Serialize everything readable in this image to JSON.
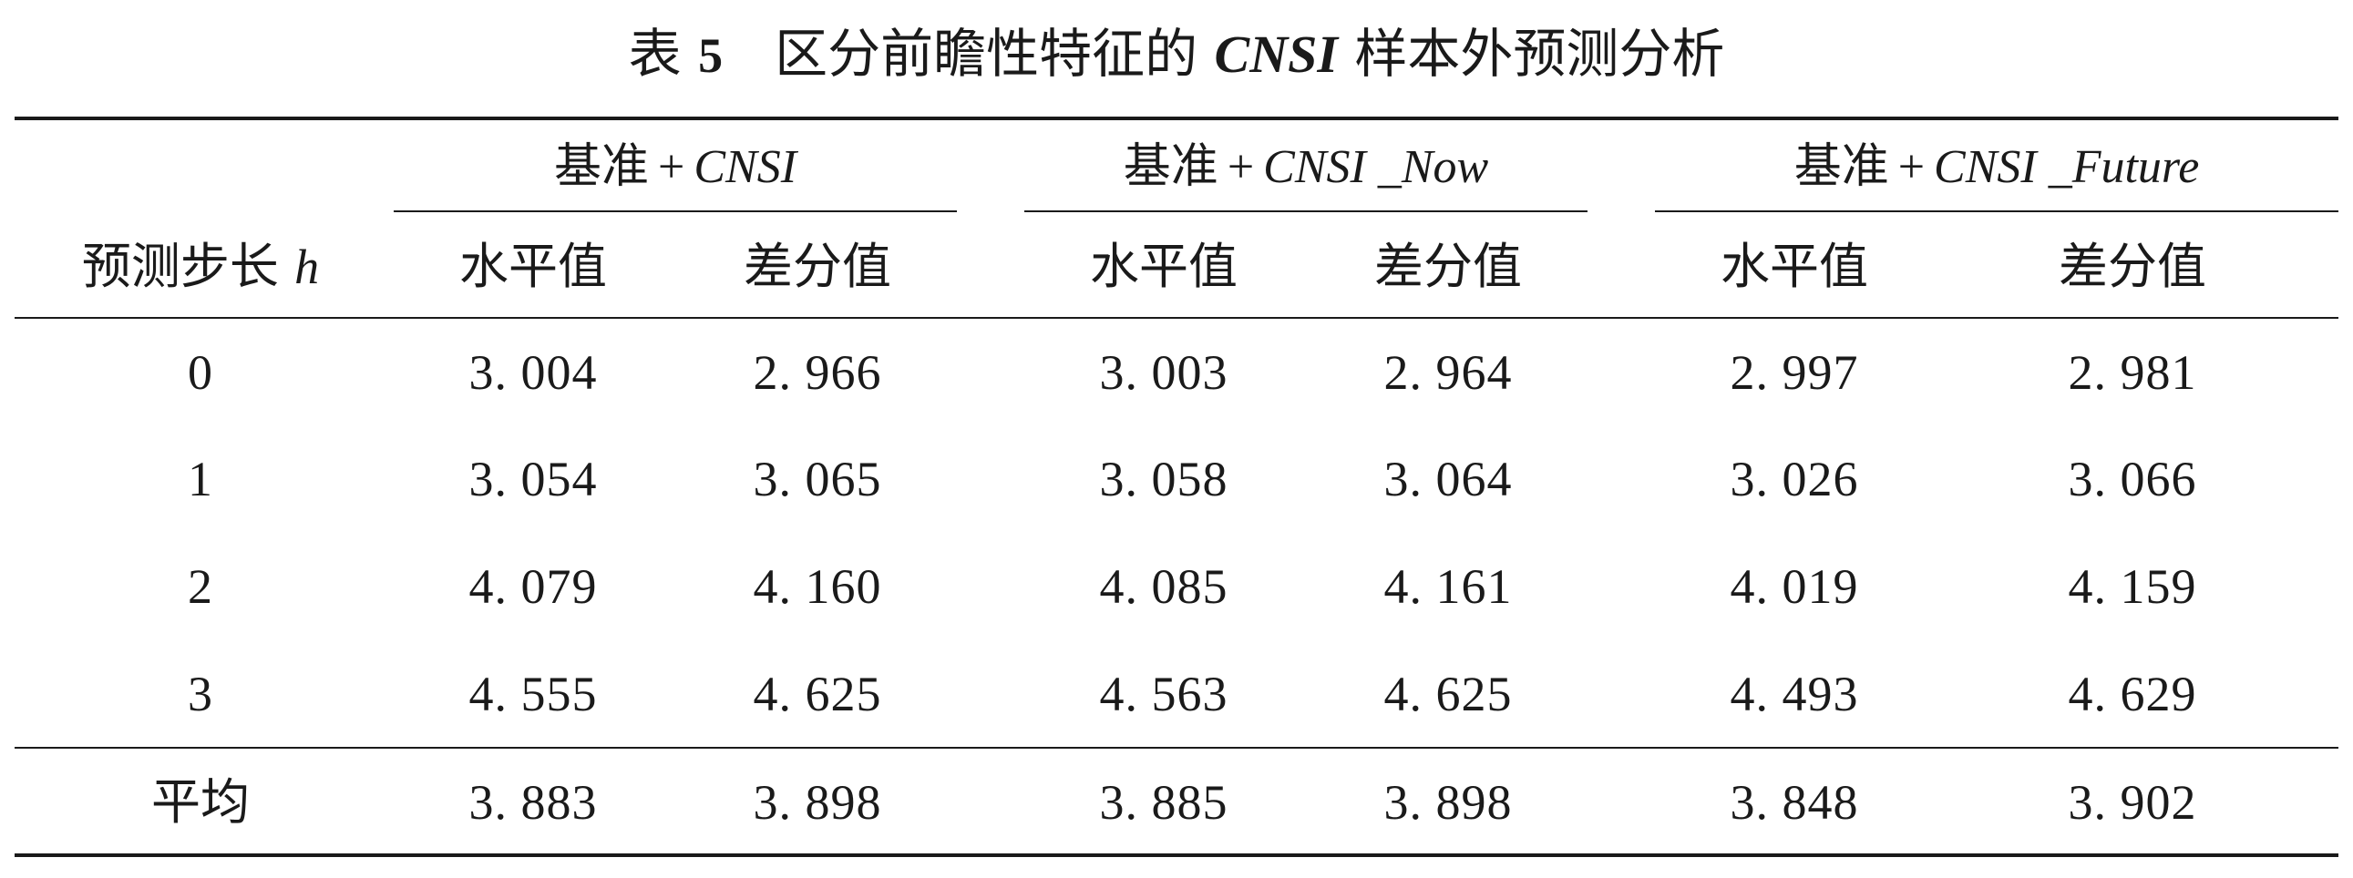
{
  "caption": {
    "prefix": "表",
    "number": "5",
    "before_abbr": "区分前瞻性特征的",
    "abbr": "CNSI",
    "after_abbr": "样本外预测分析"
  },
  "table": {
    "row_header": {
      "label": "预测步长",
      "variable": "h"
    },
    "groups": [
      {
        "base": "基准",
        "plus": "+",
        "variable": "CNSI"
      },
      {
        "base": "基准",
        "plus": "+",
        "variable": "CNSI _Now"
      },
      {
        "base": "基准",
        "plus": "+",
        "variable": "CNSI _Future"
      }
    ],
    "subheaders": [
      "水平值",
      "差分值",
      "水平值",
      "差分值",
      "水平值",
      "差分值"
    ],
    "rows": [
      {
        "h": "0",
        "values": [
          "3. 004",
          "2. 966",
          "3. 003",
          "2. 964",
          "2. 997",
          "2. 981"
        ]
      },
      {
        "h": "1",
        "values": [
          "3. 054",
          "3. 065",
          "3. 058",
          "3. 064",
          "3. 026",
          "3. 066"
        ]
      },
      {
        "h": "2",
        "values": [
          "4. 079",
          "4. 160",
          "4. 085",
          "4. 161",
          "4. 019",
          "4. 159"
        ]
      },
      {
        "h": "3",
        "values": [
          "4. 555",
          "4. 625",
          "4. 563",
          "4. 625",
          "4. 493",
          "4. 629"
        ]
      }
    ],
    "average": {
      "label": "平均",
      "values": [
        "3. 883",
        "3. 898",
        "3. 885",
        "3. 898",
        "3. 848",
        "3. 902"
      ]
    }
  }
}
